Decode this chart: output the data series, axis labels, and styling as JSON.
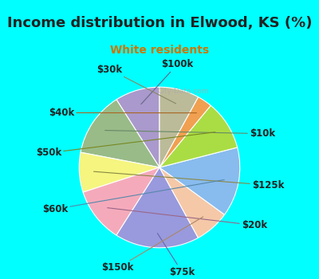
{
  "title": "Income distribution in Elwood, KS (%)",
  "subtitle": "White residents",
  "bg_cyan": "#00ffff",
  "bg_chart": "#d8ede6",
  "title_color": "#222222",
  "subtitle_color": "#cc7700",
  "labels": [
    "$100k",
    "$10k",
    "$125k",
    "$20k",
    "$75k",
    "$150k",
    "$60k",
    "$50k",
    "$40k",
    "$30k"
  ],
  "values": [
    9,
    13,
    8,
    11,
    17,
    7,
    14,
    10,
    3,
    8
  ],
  "colors": [
    "#aa99cc",
    "#99bb88",
    "#f5f580",
    "#f5aabb",
    "#9999dd",
    "#f5c8a8",
    "#88bbee",
    "#aadd44",
    "#f0a050",
    "#bbbb99"
  ],
  "startangle": 90,
  "title_fontsize": 13,
  "subtitle_fontsize": 10,
  "label_fontsize": 8.5
}
